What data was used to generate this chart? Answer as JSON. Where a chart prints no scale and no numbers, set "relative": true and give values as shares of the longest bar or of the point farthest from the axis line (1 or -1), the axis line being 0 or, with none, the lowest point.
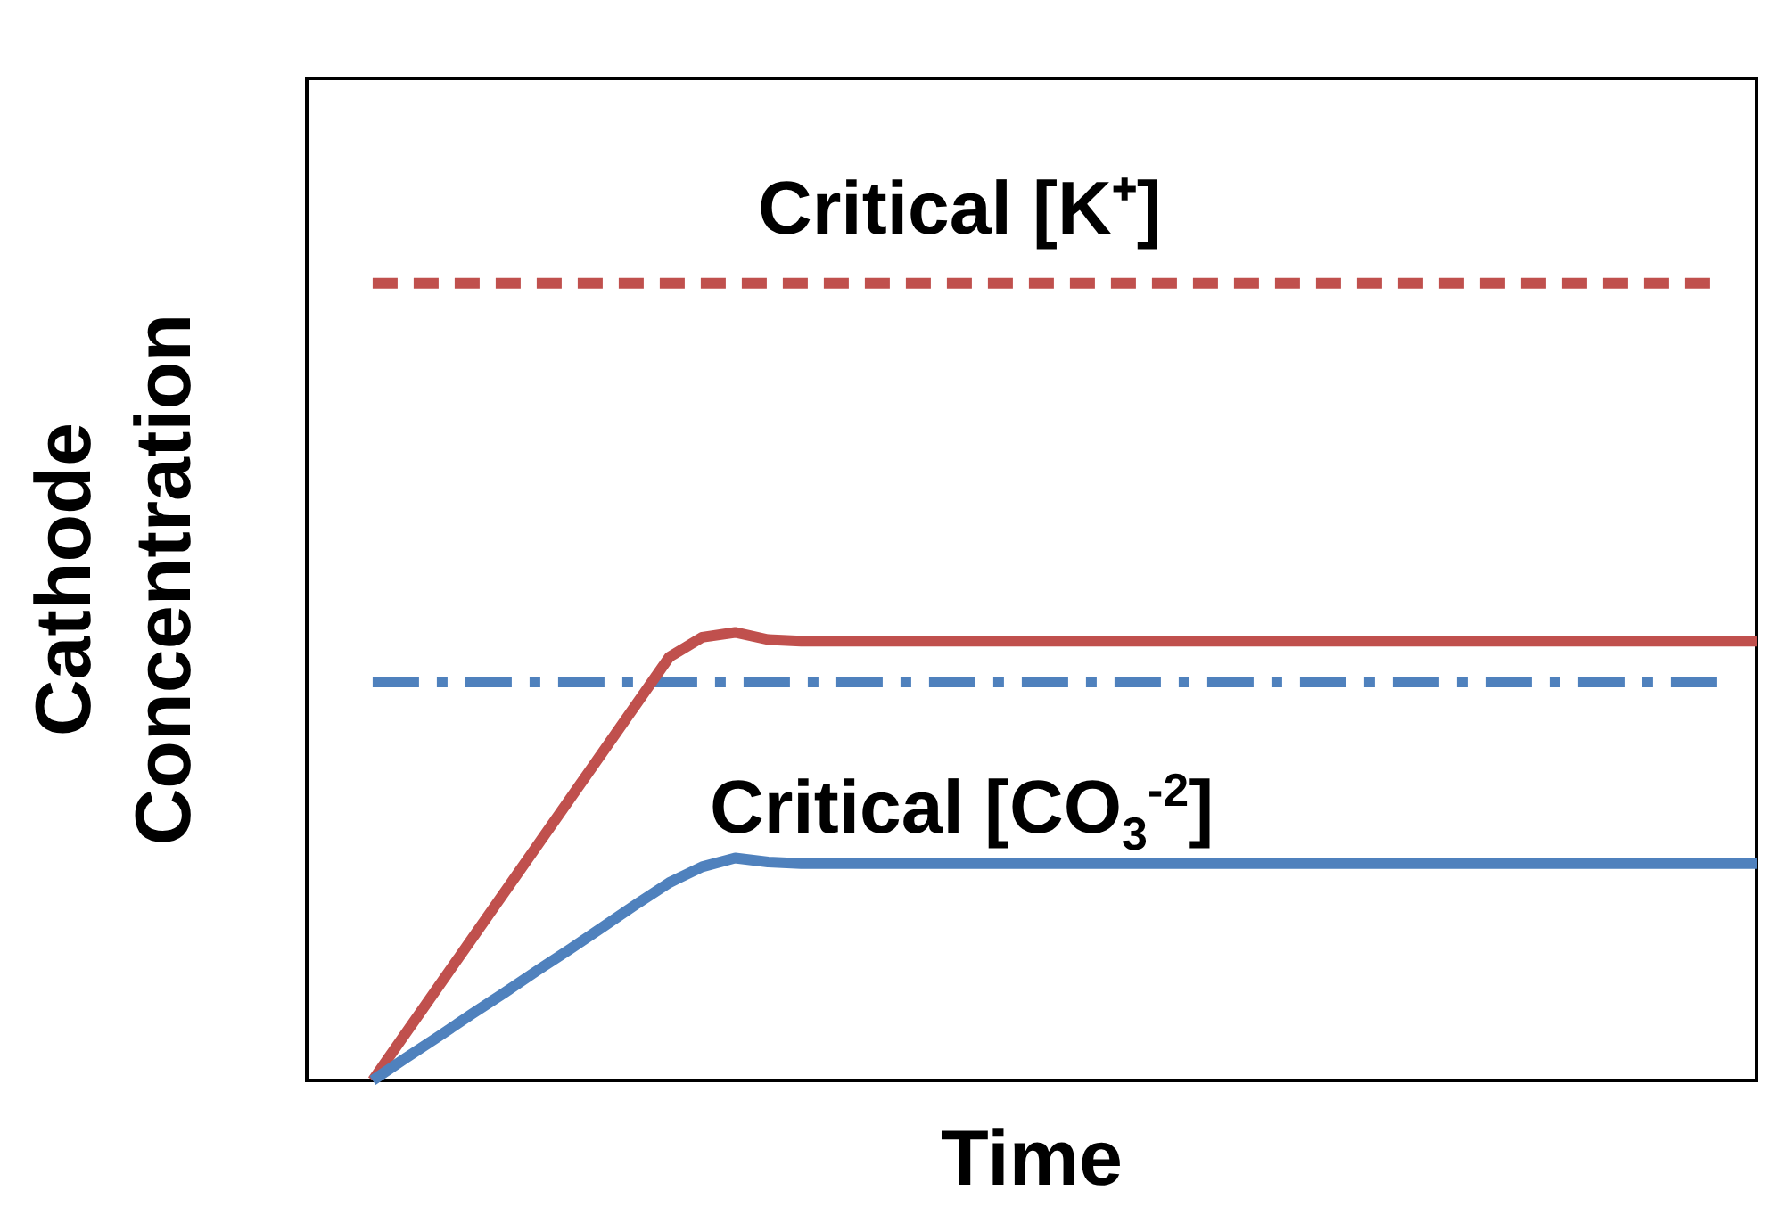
{
  "chart_data": {
    "type": "line",
    "relative": true,
    "xlabel": "Time",
    "ylabel": "Cathode Concentration",
    "marker": "none",
    "categories": [
      null,
      null,
      null,
      null,
      null,
      null,
      null,
      null,
      null,
      null,
      null,
      null,
      null,
      null,
      null,
      null,
      null,
      null,
      null,
      null,
      null,
      null,
      null,
      null,
      null,
      null,
      null,
      null,
      null,
      null,
      null,
      null,
      null,
      null,
      null,
      null,
      null,
      null,
      null,
      null,
      null,
      null,
      null,
      null,
      null
    ],
    "annotations": [
      "Critical [K⁺]",
      "Critical [CO$_{3}$$^{-2}$]"
    ],
    "series": [
      {
        "color": "#c0504d",
        "line_style": "dashed",
        "values": [
          null,
          null,
          1,
          1,
          1,
          1,
          1,
          1,
          1,
          1,
          1,
          1,
          1,
          1,
          1,
          1,
          1,
          1,
          1,
          1,
          1,
          1,
          1,
          1,
          1,
          1,
          1,
          1,
          1,
          1,
          1,
          1,
          1,
          1,
          1,
          1,
          1,
          1,
          1,
          1,
          1,
          1,
          1,
          1,
          null
        ]
      },
      {
        "color": "#4f81bd",
        "line_style": "dashdot",
        "values": [
          null,
          null,
          0.5,
          0.5,
          0.5,
          0.5,
          0.5,
          0.5,
          0.5,
          0.5,
          0.5,
          0.5,
          0.5,
          0.5,
          0.5,
          0.5,
          0.5,
          0.5,
          0.5,
          0.5,
          0.5,
          0.5,
          0.5,
          0.5,
          0.5,
          0.5,
          0.5,
          0.5,
          0.5,
          0.5,
          0.5,
          0.5,
          0.5,
          0.5,
          0.5,
          0.5,
          0.5,
          0.5,
          0.5,
          0.5,
          0.5,
          0.5,
          0.5,
          0.5,
          null
        ]
      },
      {
        "color": "#c0504d",
        "line_style": "solid",
        "values": [
          null,
          null,
          0,
          0.059,
          0.118,
          0.177,
          0.236,
          0.295,
          0.354,
          0.413,
          0.472,
          0.531,
          0.556,
          0.562,
          0.553,
          0.551,
          0.551,
          0.551,
          0.551,
          0.551,
          0.551,
          0.551,
          0.551,
          0.551,
          0.551,
          0.551,
          0.551,
          0.551,
          0.551,
          0.551,
          0.551,
          0.551,
          0.551,
          0.551,
          0.551,
          0.551,
          0.551,
          0.551,
          0.551,
          0.551,
          0.551,
          0.551,
          0.551,
          0.551,
          0.551
        ]
      },
      {
        "color": "#4f81bd",
        "line_style": "solid",
        "values": [
          null,
          null,
          0,
          0.028,
          0.055,
          0.083,
          0.11,
          0.138,
          0.165,
          0.193,
          0.221,
          0.248,
          0.268,
          0.279,
          0.274,
          0.272,
          0.272,
          0.272,
          0.272,
          0.272,
          0.272,
          0.272,
          0.272,
          0.272,
          0.272,
          0.272,
          0.272,
          0.272,
          0.272,
          0.272,
          0.272,
          0.272,
          0.272,
          0.272,
          0.272,
          0.272,
          0.272,
          0.272,
          0.272,
          0.272,
          0.272,
          0.272,
          0.272,
          0.272,
          0.272
        ]
      }
    ]
  }
}
